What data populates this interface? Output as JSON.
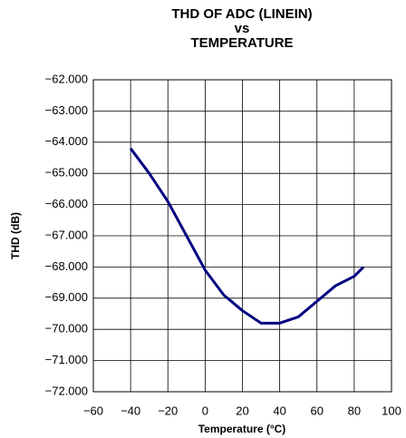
{
  "chart_data": {
    "type": "line",
    "title": [
      "THD OF ADC (LINEIN)",
      "vs",
      "TEMPERATURE"
    ],
    "x_label": "Temperature (°C)",
    "y_label": "THD (dB)",
    "x": [
      -40,
      -30,
      -20,
      -10,
      0,
      10,
      20,
      25,
      30,
      40,
      50,
      60,
      70,
      80,
      85
    ],
    "series": [
      {
        "name": "THD",
        "color": "#000080",
        "values": [
          -64.2,
          -65.0,
          -65.9,
          -67.0,
          -68.1,
          -68.9,
          -69.4,
          -69.6,
          -69.8,
          -69.8,
          -69.6,
          -69.1,
          -68.6,
          -68.3,
          -68.0
        ]
      }
    ],
    "xlim": [
      -60,
      100
    ],
    "xticks": [
      {
        "value": -60,
        "label": "−60"
      },
      {
        "value": -40,
        "label": "−40"
      },
      {
        "value": -20,
        "label": "−20"
      },
      0,
      20,
      40,
      60,
      80,
      100
    ],
    "ylim": [
      -72,
      -62
    ],
    "yticks": [
      {
        "value": -72,
        "label": "−72.000"
      },
      {
        "value": -71,
        "label": "−71.000"
      },
      {
        "value": -70,
        "label": "−70.000"
      },
      {
        "value": -69,
        "label": "−69.000"
      },
      {
        "value": -68,
        "label": "−68.000"
      },
      {
        "value": -67,
        "label": "−67.000"
      },
      {
        "value": -66,
        "label": "−66.000"
      },
      {
        "value": -65,
        "label": "−65.000"
      },
      {
        "value": -64,
        "label": "−64.000"
      },
      {
        "value": -63,
        "label": "−63.000"
      },
      {
        "value": -62,
        "label": "−62.000"
      }
    ],
    "grid": true
  }
}
